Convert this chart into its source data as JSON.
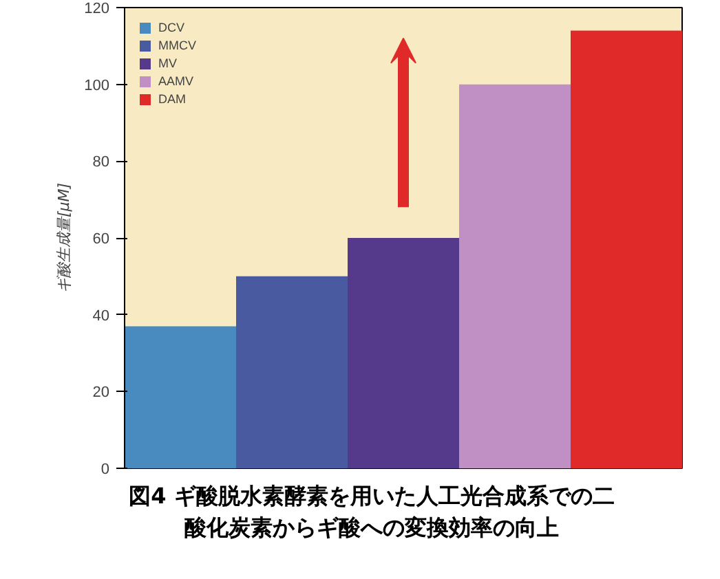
{
  "chart_data": {
    "type": "bar",
    "ylabel": "ギ酸生成量[μM]",
    "annotations": [
      "図4 ギ酸脱水素酵素を用いた人工光合成系での二酸化炭素からギ酸への変換効率の向上"
    ],
    "categories": [
      null,
      null,
      null,
      null,
      null
    ],
    "series": [
      {
        "name": "DCV",
        "color": "#4a8bbf",
        "values": [
          37,
          null,
          null,
          null,
          null
        ]
      },
      {
        "name": "MMCV",
        "color": "#4a5aa0",
        "values": [
          null,
          50,
          null,
          null,
          null
        ]
      },
      {
        "name": "MV",
        "color": "#553a8c",
        "values": [
          null,
          null,
          60,
          null,
          null
        ]
      },
      {
        "name": "AAMV",
        "color": "#c08fc4",
        "values": [
          null,
          null,
          null,
          100,
          null
        ]
      },
      {
        "name": "DAM",
        "color": "#e02a2a",
        "values": [
          null,
          null,
          null,
          null,
          114
        ]
      }
    ],
    "ylim": [
      0,
      120
    ],
    "yticks": [
      0,
      20,
      40,
      60,
      80,
      100,
      120
    ],
    "legend": "top left",
    "stacked": true,
    "grid": false
  }
}
